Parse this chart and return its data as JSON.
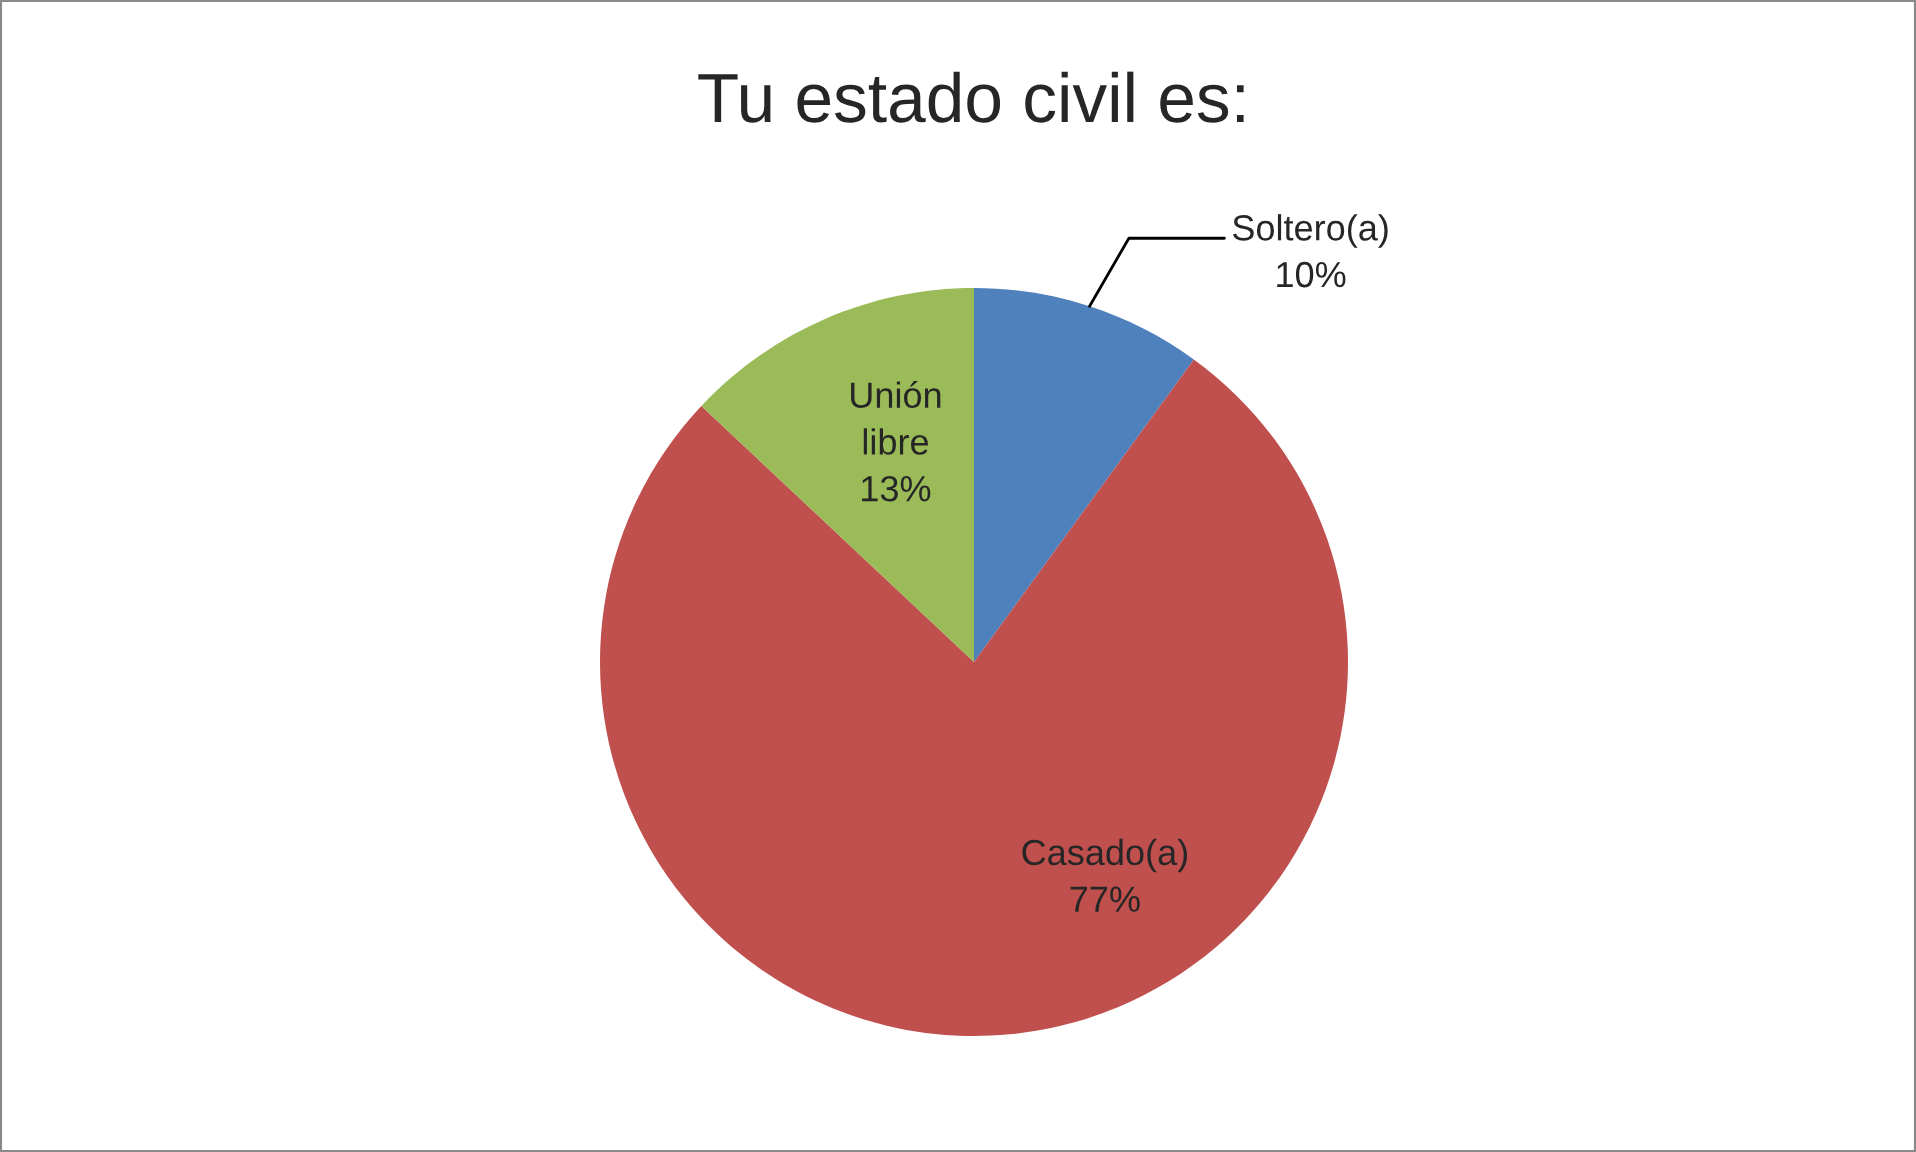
{
  "chart_data": {
    "type": "pie",
    "title": "Tu estado civil es:",
    "categories": [
      "Soltero(a)",
      "Casado(a)",
      "Unión libre"
    ],
    "values": [
      10,
      77,
      13
    ],
    "colors": [
      "#4f81bd",
      "#c0504d",
      "#9bbb59"
    ],
    "value_labels": [
      "10%",
      "77%",
      "13%"
    ],
    "legend": false
  }
}
